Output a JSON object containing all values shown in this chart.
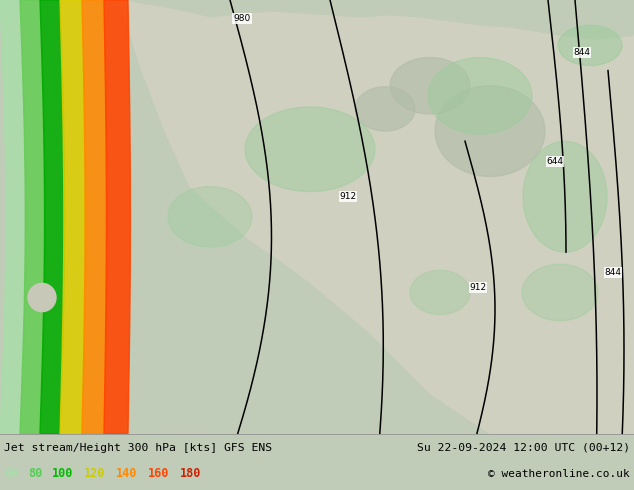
{
  "title_left": "Jet stream/Height 300 hPa [kts] GFS ENS",
  "title_right": "Su 22-09-2024 12:00 UTC (00+12)",
  "copyright": "© weatheronline.co.uk",
  "legend_values": [
    "60",
    "80",
    "100",
    "120",
    "140",
    "160",
    "180"
  ],
  "legend_colors": [
    "#aaddaa",
    "#55cc55",
    "#00bb00",
    "#cccc00",
    "#ff8800",
    "#ff4400",
    "#cc2200"
  ],
  "bg_color": "#c0ccb8",
  "land_color": "#d0d0c0",
  "contour_color": "#000000",
  "jet_band_colors": [
    "#aaddaa",
    "#66cc55",
    "#00aa00",
    "#ddcc00",
    "#ff8800",
    "#ff4400"
  ],
  "green_patch_color": "#99cc99",
  "figsize": [
    6.34,
    4.9
  ],
  "dpi": 100
}
